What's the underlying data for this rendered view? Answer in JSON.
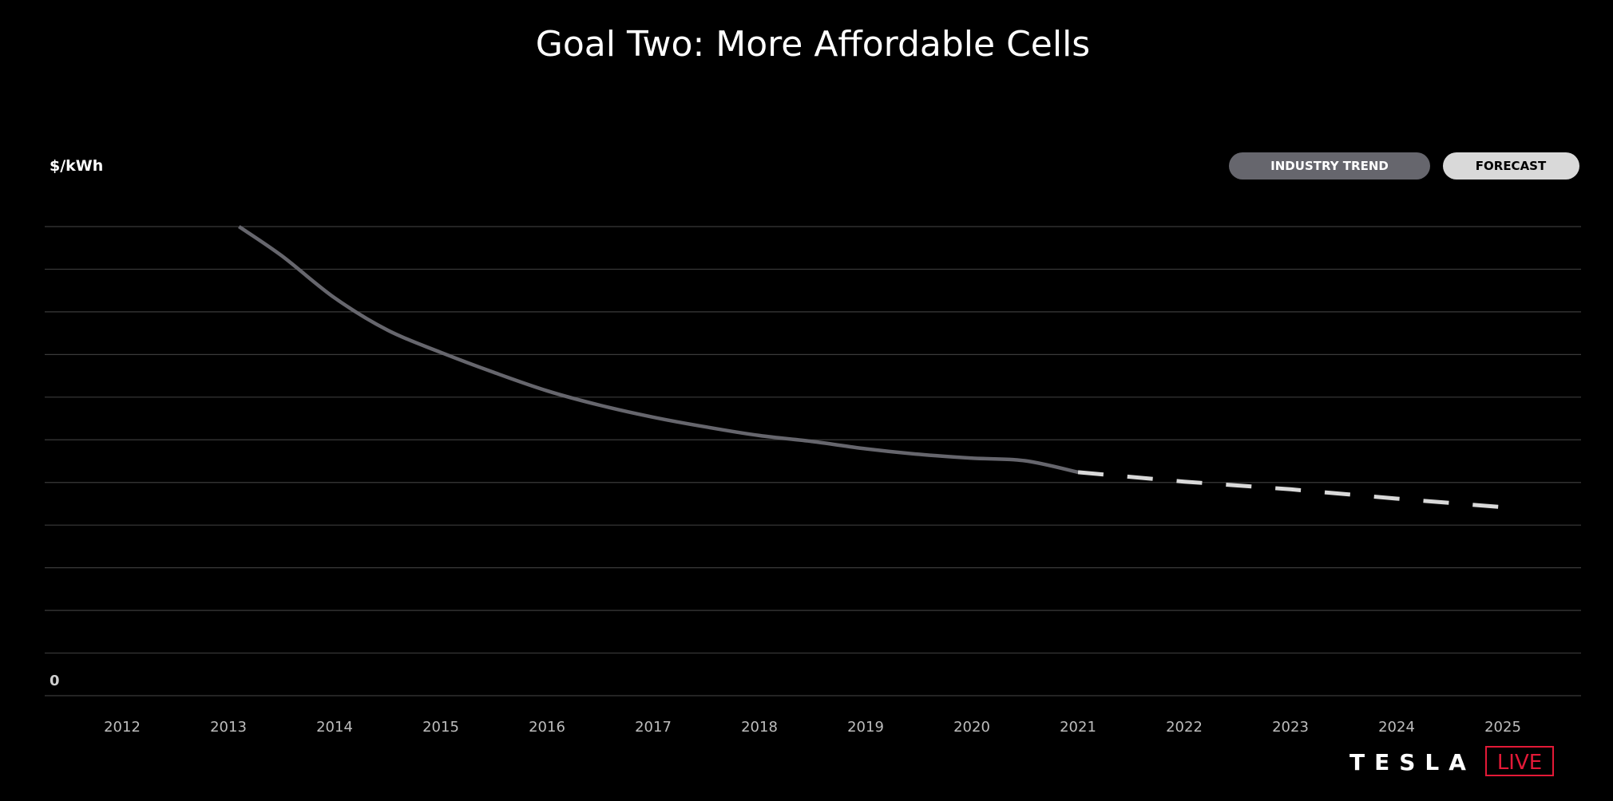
{
  "chart_data": {
    "type": "line",
    "title": "Goal Two: More Affordable Cells",
    "ylabel": "$/kWh",
    "xlabel": "",
    "y_tick_labels": [
      "0"
    ],
    "y_range": [
      0,
      11
    ],
    "y_grid_lines": 11,
    "grid": true,
    "legend_position": "top-right",
    "categories": [
      "2012",
      "2013",
      "2014",
      "2015",
      "2016",
      "2017",
      "2018",
      "2019",
      "2020",
      "2021",
      "2022",
      "2023",
      "2024",
      "2025"
    ],
    "series": [
      {
        "name": "INDUSTRY TREND",
        "style": "solid",
        "color": "#66666d",
        "x": [
          2013.1,
          2013.5,
          2014,
          2014.5,
          2015,
          2015.5,
          2016,
          2016.5,
          2017,
          2017.5,
          2018,
          2018.5,
          2019,
          2019.5,
          2020,
          2020.5,
          2021
        ],
        "y": [
          11.0,
          10.32,
          9.33,
          8.57,
          8.05,
          7.58,
          7.15,
          6.81,
          6.53,
          6.3,
          6.1,
          5.96,
          5.79,
          5.66,
          5.57,
          5.51,
          5.24
        ]
      },
      {
        "name": "FORECAST",
        "style": "dashed",
        "color": "#d9d9d9",
        "x": [
          2021,
          2022,
          2023,
          2024,
          2025.05
        ],
        "y": [
          5.24,
          5.02,
          4.84,
          4.62,
          4.41
        ]
      }
    ]
  },
  "logo": {
    "text": "TESLA",
    "badge": "LIVE",
    "badge_color": "#e31937"
  },
  "colors": {
    "background": "#000000",
    "grid": "#3a3a3a",
    "trend_pill": "#66666d",
    "forecast_pill": "#d9d9d9"
  }
}
